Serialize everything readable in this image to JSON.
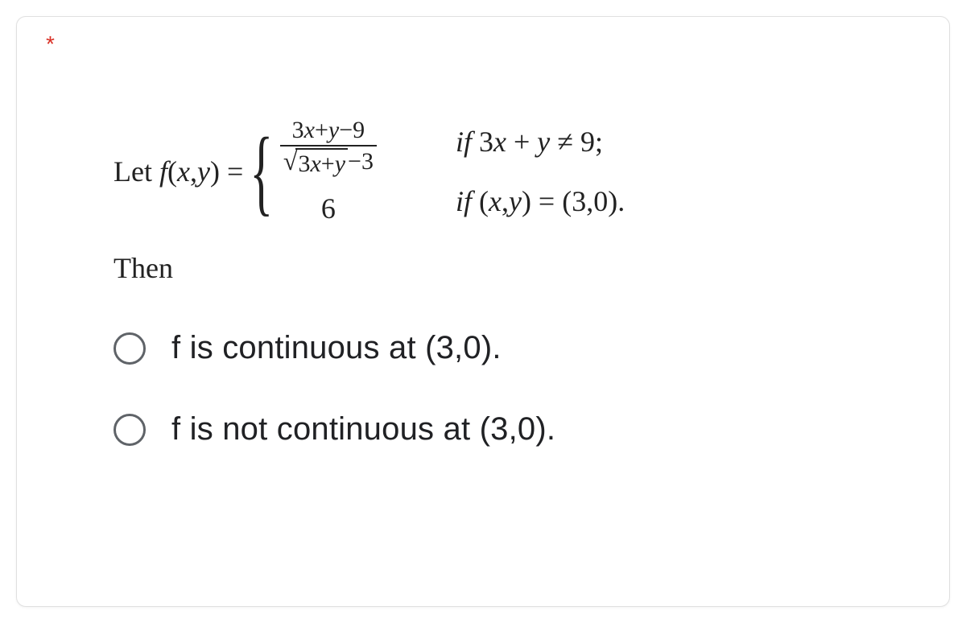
{
  "required_marker": "*",
  "equation": {
    "let_prefix": "Let ",
    "func": "f",
    "args_open": "(",
    "var_x": "x",
    "comma": ",",
    "var_y": "y",
    "args_close": ")",
    "equals": " = ",
    "brace": "{",
    "case1": {
      "numerator": "3x+y−9",
      "radical_sym": "√",
      "radicand": "3x+y",
      "den_tail": "−3"
    },
    "case2": "6",
    "cond1": {
      "if": "if ",
      "expr": "3x + y ≠ 9;",
      "three": "3"
    },
    "cond2": {
      "if": "if ",
      "open": "(",
      "x": "x",
      "comma": ",",
      "y": "y",
      "close": ") = (3,0)."
    }
  },
  "then_text": "Then",
  "options": [
    {
      "label": "f is continuous at (3,0)."
    },
    {
      "label": "f is not continuous at (3,0)."
    }
  ],
  "colors": {
    "asterisk": "#d93025",
    "text": "#202124",
    "radio_border": "#5f6368",
    "card_border": "#e0e0e0",
    "background": "#ffffff"
  }
}
